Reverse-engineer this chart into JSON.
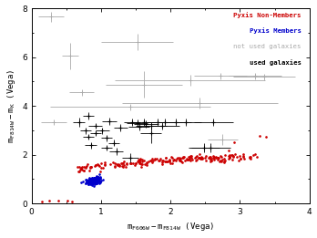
{
  "xlabel": "m$_{F606W}$-m$_{F814W}$ (Vega)",
  "ylabel": "m$_{F814W}$-m$_{K}$ (Vega)",
  "xlim": [
    0,
    4
  ],
  "ylim": [
    0,
    8
  ],
  "xticks": [
    0,
    1,
    2,
    3,
    4
  ],
  "yticks": [
    0,
    2,
    4,
    6,
    8
  ],
  "red_color": "#cc0000",
  "blue_color": "#0000cc",
  "gray_color": "#aaaaaa",
  "black_color": "#000000",
  "bg_color": "#ffffff",
  "gray_points": [
    [
      0.28,
      7.65,
      0.18,
      0.22
    ],
    [
      0.55,
      6.05,
      0.12,
      0.55
    ],
    [
      1.52,
      6.62,
      0.52,
      0.32
    ],
    [
      0.72,
      4.55,
      0.18,
      0.12
    ],
    [
      0.32,
      3.32,
      0.18,
      0.12
    ],
    [
      1.42,
      3.95,
      1.15,
      0.12
    ],
    [
      1.62,
      4.88,
      0.55,
      0.55
    ],
    [
      2.28,
      5.05,
      1.08,
      0.22
    ],
    [
      2.42,
      4.12,
      1.12,
      0.22
    ],
    [
      2.72,
      5.22,
      0.38,
      0.12
    ],
    [
      3.22,
      5.22,
      0.38,
      0.12
    ],
    [
      2.75,
      2.62,
      0.22,
      0.22
    ],
    [
      3.35,
      5.18,
      0.45,
      0.12
    ]
  ],
  "black_points": [
    [
      0.68,
      3.32,
      0.08,
      0.18
    ],
    [
      0.78,
      2.98,
      0.08,
      0.12
    ],
    [
      0.82,
      3.58,
      0.08,
      0.15
    ],
    [
      0.82,
      2.72,
      0.08,
      0.12
    ],
    [
      0.85,
      2.38,
      0.08,
      0.12
    ],
    [
      0.92,
      2.88,
      0.08,
      0.12
    ],
    [
      0.92,
      3.18,
      0.1,
      0.12
    ],
    [
      1.02,
      2.98,
      0.1,
      0.12
    ],
    [
      1.08,
      2.28,
      0.08,
      0.12
    ],
    [
      1.08,
      2.68,
      0.08,
      0.12
    ],
    [
      1.12,
      3.38,
      0.1,
      0.15
    ],
    [
      1.18,
      2.48,
      0.08,
      0.12
    ],
    [
      1.22,
      2.12,
      0.1,
      0.15
    ],
    [
      1.28,
      3.12,
      0.1,
      0.15
    ],
    [
      1.42,
      1.88,
      0.12,
      0.18
    ],
    [
      1.45,
      3.32,
      0.12,
      0.15
    ],
    [
      1.52,
      3.28,
      0.15,
      0.15
    ],
    [
      1.55,
      3.15,
      0.15,
      0.15
    ],
    [
      1.62,
      3.32,
      0.18,
      0.15
    ],
    [
      1.65,
      3.25,
      0.18,
      0.15
    ],
    [
      1.72,
      3.18,
      0.22,
      0.15
    ],
    [
      1.72,
      2.88,
      0.15,
      0.42
    ],
    [
      1.82,
      3.32,
      0.22,
      0.15
    ],
    [
      1.88,
      3.18,
      0.25,
      0.15
    ],
    [
      1.92,
      3.32,
      0.25,
      0.15
    ],
    [
      2.08,
      3.32,
      0.22,
      0.15
    ],
    [
      2.22,
      3.32,
      0.22,
      0.15
    ],
    [
      2.48,
      2.28,
      0.22,
      0.18
    ],
    [
      2.58,
      2.28,
      0.28,
      0.18
    ],
    [
      2.62,
      3.32,
      0.28,
      0.15
    ]
  ]
}
